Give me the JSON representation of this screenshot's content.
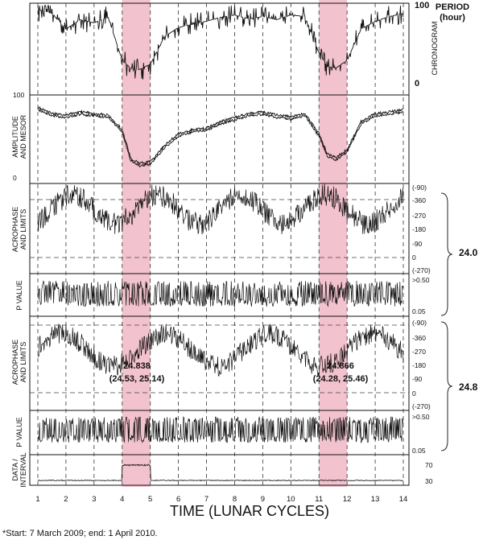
{
  "chart_data": {
    "type": "line",
    "xlabel": "TIME (LUNAR CYCLES)",
    "x_ticks": [
      "1",
      "2",
      "3",
      "4",
      "5",
      "6",
      "7",
      "8",
      "9",
      "10",
      "11",
      "12",
      "13",
      "14"
    ],
    "highlight_intervals": [
      [
        4,
        5
      ],
      [
        11,
        12
      ]
    ],
    "footnote": "*Start: 7 March 2009; end: 1 April 2010.",
    "side_labels": [
      "24.0",
      "24.8"
    ],
    "panels": [
      {
        "id": "chronogram",
        "ylabel": "CHRONOGRAM",
        "right_title": [
          "PERIOD",
          "(hour)"
        ],
        "ticks": [
          "100",
          "0"
        ]
      },
      {
        "id": "amplitude",
        "ylabel": [
          "AMPLITUDE",
          "AND MESOR"
        ],
        "ticks": [
          "100",
          "0"
        ]
      },
      {
        "id": "acrophase1",
        "ylabel": [
          "ACROPHASE",
          "AND LIMITS"
        ],
        "ticks": [
          "(-90)",
          "-360",
          "-270",
          "-180",
          "-90",
          "0",
          "(-270)"
        ]
      },
      {
        "id": "pvalue1",
        "ylabel": "P VALUE",
        "ticks": [
          ">0.50",
          "0.05"
        ]
      },
      {
        "id": "acrophase2",
        "ylabel": [
          "ACROPHASE",
          "AND LIMITS"
        ],
        "ticks": [
          "(-90)",
          "-360",
          "-270",
          "-180",
          "-90",
          "0",
          "(-270)"
        ],
        "annotations": [
          [
            "24.838",
            "(24.53, 25.14)"
          ],
          [
            "24.866",
            "(24.28, 25.46)"
          ]
        ]
      },
      {
        "id": "pvalue2",
        "ylabel": "P VALUE",
        "ticks": [
          ">0.50",
          "0.05"
        ]
      },
      {
        "id": "data_interval",
        "ylabel": [
          "DATA /",
          "INTERVAL"
        ],
        "ticks": [
          "70",
          "30"
        ]
      }
    ],
    "approx_series": {
      "x": [
        1,
        1.5,
        2,
        2.5,
        3,
        3.5,
        4,
        4.3,
        4.6,
        5,
        5.5,
        6,
        6.5,
        7,
        7.5,
        8,
        8.5,
        9,
        9.5,
        10,
        10.5,
        11,
        11.3,
        11.6,
        12,
        12.5,
        13,
        13.5,
        14
      ],
      "chronogram_period": [
        95,
        90,
        70,
        82,
        78,
        85,
        30,
        20,
        18,
        25,
        60,
        72,
        76,
        80,
        85,
        88,
        83,
        86,
        82,
        88,
        86,
        40,
        22,
        20,
        30,
        70,
        80,
        86,
        90
      ],
      "amplitude_mesor": [
        88,
        80,
        78,
        82,
        80,
        78,
        60,
        25,
        18,
        20,
        40,
        55,
        60,
        62,
        70,
        75,
        80,
        82,
        78,
        76,
        80,
        55,
        30,
        25,
        35,
        70,
        80,
        82,
        85
      ]
    }
  }
}
